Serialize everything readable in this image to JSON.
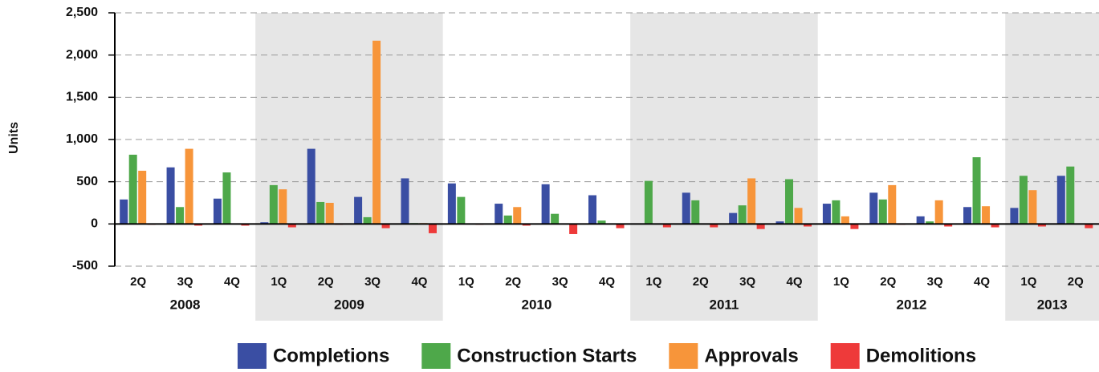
{
  "chart_data": {
    "type": "bar",
    "y_label": "Units",
    "categories": [
      {
        "quarter": "2Q",
        "year": "2008"
      },
      {
        "quarter": "3Q",
        "year": "2008"
      },
      {
        "quarter": "4Q",
        "year": "2008"
      },
      {
        "quarter": "1Q",
        "year": "2009"
      },
      {
        "quarter": "2Q",
        "year": "2009"
      },
      {
        "quarter": "3Q",
        "year": "2009"
      },
      {
        "quarter": "4Q",
        "year": "2009"
      },
      {
        "quarter": "1Q",
        "year": "2010"
      },
      {
        "quarter": "2Q",
        "year": "2010"
      },
      {
        "quarter": "3Q",
        "year": "2010"
      },
      {
        "quarter": "4Q",
        "year": "2010"
      },
      {
        "quarter": "1Q",
        "year": "2011"
      },
      {
        "quarter": "2Q",
        "year": "2011"
      },
      {
        "quarter": "3Q",
        "year": "2011"
      },
      {
        "quarter": "4Q",
        "year": "2011"
      },
      {
        "quarter": "1Q",
        "year": "2012"
      },
      {
        "quarter": "2Q",
        "year": "2012"
      },
      {
        "quarter": "3Q",
        "year": "2012"
      },
      {
        "quarter": "4Q",
        "year": "2012"
      },
      {
        "quarter": "1Q",
        "year": "2013"
      },
      {
        "quarter": "2Q",
        "year": "2013"
      }
    ],
    "series": [
      {
        "name": "Completions",
        "color": "#3a4ea3",
        "values": [
          290,
          670,
          300,
          20,
          890,
          320,
          540,
          480,
          240,
          470,
          340,
          0,
          370,
          130,
          30,
          240,
          370,
          90,
          200,
          190,
          570
        ]
      },
      {
        "name": "Construction Starts",
        "color": "#4ea84a",
        "values": [
          820,
          200,
          610,
          460,
          260,
          80,
          10,
          320,
          100,
          120,
          40,
          510,
          280,
          220,
          530,
          280,
          290,
          30,
          790,
          570,
          680
        ]
      },
      {
        "name": "Approvals",
        "color": "#f7953a",
        "values": [
          630,
          890,
          0,
          410,
          250,
          2170,
          10,
          0,
          200,
          0,
          0,
          0,
          0,
          540,
          190,
          90,
          460,
          280,
          210,
          400,
          0
        ]
      },
      {
        "name": "Demolitions",
        "color": "#ee3a3a",
        "values": [
          -10,
          -20,
          -20,
          -40,
          -10,
          -50,
          -110,
          -10,
          -20,
          -120,
          -50,
          -40,
          -40,
          -60,
          -30,
          -60,
          -10,
          -30,
          -40,
          -30,
          -50
        ]
      }
    ],
    "ylim": [
      -500,
      2500
    ],
    "yticks": [
      -500,
      0,
      500,
      {
        "value": 1000,
        "label": "1,000"
      },
      {
        "value": 1500,
        "label": "1,500"
      },
      {
        "value": 2000,
        "label": "2,000"
      },
      {
        "value": 2500,
        "label": "2,500"
      }
    ],
    "grid": true,
    "legend": "bottom"
  }
}
